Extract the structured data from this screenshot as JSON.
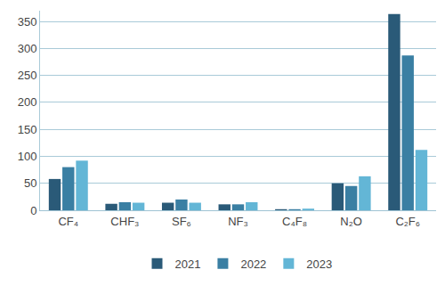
{
  "chart_data": {
    "type": "bar",
    "categories": [
      "CF₄",
      "CHF₃",
      "SF₆",
      "NF₃",
      "C₄F₈",
      "N₂O",
      "C₂F₆"
    ],
    "series": [
      {
        "name": "2021",
        "color": "#2a5a78",
        "values": [
          58,
          12,
          14,
          11,
          2,
          50,
          364
        ]
      },
      {
        "name": "2022",
        "color": "#3a7fa3",
        "values": [
          80,
          15,
          20,
          11,
          2,
          45,
          287
        ]
      },
      {
        "name": "2023",
        "color": "#63b6d6",
        "values": [
          92,
          14,
          14,
          15,
          3,
          63,
          112
        ]
      }
    ],
    "ylim": [
      0,
      370
    ],
    "yticks": [
      0,
      50,
      100,
      150,
      200,
      250,
      300,
      350
    ],
    "grid": true,
    "legend": "bottom"
  }
}
